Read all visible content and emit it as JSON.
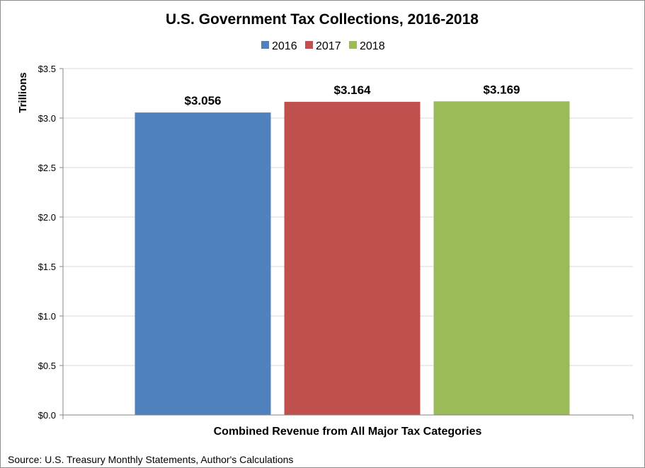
{
  "chart_data": {
    "type": "bar",
    "title": "U.S. Government Tax Collections, 2016-2018",
    "categories": [
      "Combined Revenue from All Major Tax Categories"
    ],
    "series": [
      {
        "name": "2016",
        "values": [
          3.056
        ],
        "label": "$3.056",
        "color": "#4f81bd"
      },
      {
        "name": "2017",
        "values": [
          3.164
        ],
        "label": "$3.164",
        "color": "#c0504d"
      },
      {
        "name": "2018",
        "values": [
          3.169
        ],
        "label": "$3.169",
        "color": "#9bbb59"
      }
    ],
    "xlabel": "Combined Revenue from All Major Tax Categories",
    "ylabel": "Trillions",
    "ylim": [
      0,
      3.5
    ],
    "yticks": [
      {
        "value": 0.0,
        "label": "$0.0"
      },
      {
        "value": 0.5,
        "label": "$0.5"
      },
      {
        "value": 1.0,
        "label": "$1.0"
      },
      {
        "value": 1.5,
        "label": "$1.5"
      },
      {
        "value": 2.0,
        "label": "$2.0"
      },
      {
        "value": 2.5,
        "label": "$2.5"
      },
      {
        "value": 3.0,
        "label": "$3.0"
      },
      {
        "value": 3.5,
        "label": "$3.5"
      }
    ],
    "grid": true,
    "legend_position": "top",
    "source": "Source: U.S. Treasury Monthly Statements, Author's Calculations"
  }
}
